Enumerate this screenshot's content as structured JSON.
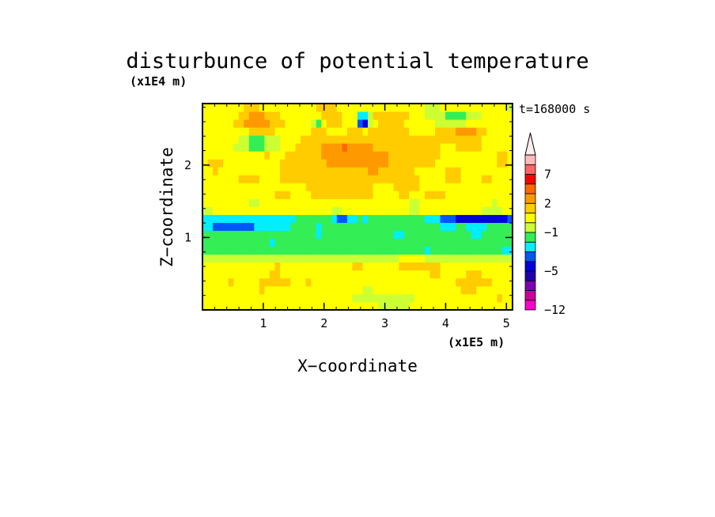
{
  "chart_data": {
    "type": "heatmap",
    "title": "disturbunce of potential temperature",
    "time_label": "t=168000 s",
    "xlabel": "X−coordinate",
    "ylabel": "Z−coordinate",
    "x_unit": "(x1E5 m)",
    "y_unit": "(x1E4 m)",
    "xlim": [
      0,
      5.1
    ],
    "ylim": [
      0,
      2.85
    ],
    "x_ticks": [
      1,
      2,
      3,
      4,
      5
    ],
    "x_tick_labels": [
      "1",
      "2",
      "3",
      "4",
      "5"
    ],
    "y_ticks": [
      1,
      2
    ],
    "y_tick_labels": [
      "1",
      "2"
    ],
    "colorbar": {
      "levels": [
        -12,
        -10,
        -8,
        -6,
        -5,
        -4,
        -3,
        -2,
        -1,
        0,
        1,
        2,
        3,
        5,
        7,
        9,
        11
      ],
      "tick_values": [
        -12,
        -5,
        -1,
        2,
        7
      ],
      "tick_labels": [
        "−12",
        "−5",
        "−1",
        "2",
        "7"
      ],
      "colors": [
        "#ff00cc",
        "#cc0099",
        "#7f00b2",
        "#2200aa",
        "#0000dd",
        "#0055ff",
        "#00eeff",
        "#33ee55",
        "#ccff33",
        "#ffff00",
        "#ffcc00",
        "#ff9900",
        "#ff6600",
        "#ff0000",
        "#ff6666",
        "#ffbbbb"
      ],
      "top_color": "#ffeeee",
      "extend": "max"
    },
    "field": {
      "nx": 60,
      "nz": 26,
      "background": -0.5,
      "bands": [
        {
          "z0": 0.0,
          "z1": 0.1,
          "value": 0.5
        },
        {
          "z0": 0.1,
          "z1": 0.62,
          "value": 0.6
        },
        {
          "z0": 0.62,
          "z1": 0.78,
          "value": -0.5
        },
        {
          "z0": 0.78,
          "z1": 1.35,
          "value": -1.6
        },
        {
          "z0": 1.35,
          "z1": 1.55,
          "value": 0.3
        },
        {
          "z0": 1.55,
          "z1": 1.9,
          "value": 1.0
        },
        {
          "z0": 1.9,
          "z1": 2.35,
          "value": 0.7
        },
        {
          "z0": 2.35,
          "z1": 2.85,
          "value": 0.4
        }
      ],
      "features": [
        {
          "x": 2.3,
          "z": 2.15,
          "rx": 0.25,
          "rz": 0.15,
          "value": 9
        },
        {
          "x": 2.7,
          "z": 2.1,
          "rx": 0.5,
          "rz": 0.22,
          "value": 3
        },
        {
          "x": 2.05,
          "z": 2.05,
          "rx": 0.7,
          "rz": 0.35,
          "value": 2
        },
        {
          "x": 3.3,
          "z": 2.25,
          "rx": 0.6,
          "rz": 0.25,
          "value": 2
        },
        {
          "x": 0.9,
          "z": 2.6,
          "rx": 0.3,
          "rz": 0.15,
          "value": 3
        },
        {
          "x": 2.0,
          "z": 2.65,
          "rx": 0.3,
          "rz": 0.15,
          "value": 2
        },
        {
          "x": 4.35,
          "z": 2.5,
          "rx": 0.3,
          "rz": 0.18,
          "value": 3
        },
        {
          "x": 3.05,
          "z": 2.65,
          "rx": 0.25,
          "rz": 0.12,
          "value": 2
        },
        {
          "x": 2.65,
          "z": 2.62,
          "rx": 0.1,
          "rz": 0.08,
          "value": -7
        },
        {
          "x": 1.9,
          "z": 2.62,
          "rx": 0.08,
          "rz": 0.06,
          "value": -4
        },
        {
          "x": 0.9,
          "z": 2.3,
          "rx": 0.35,
          "rz": 0.1,
          "value": -2
        },
        {
          "x": 4.2,
          "z": 2.65,
          "rx": 0.45,
          "rz": 0.12,
          "value": -1.5
        },
        {
          "x": 0.6,
          "z": 1.65,
          "rx": 0.7,
          "rz": 0.12,
          "value": 0.2
        },
        {
          "x": 4.7,
          "z": 1.65,
          "rx": 0.5,
          "rz": 0.12,
          "value": 0.2
        },
        {
          "x": 0.5,
          "z": 1.2,
          "rx": 0.8,
          "rz": 0.06,
          "value": -5
        },
        {
          "x": 4.6,
          "z": 1.25,
          "rx": 0.7,
          "rz": 0.07,
          "value": -5
        },
        {
          "x": 2.3,
          "z": 1.25,
          "rx": 0.15,
          "rz": 0.07,
          "value": -4
        },
        {
          "x": 3.5,
          "z": 0.6,
          "rx": 0.25,
          "rz": 0.1,
          "value": 2
        },
        {
          "x": 4.5,
          "z": 0.4,
          "rx": 0.3,
          "rz": 0.1,
          "value": 2
        },
        {
          "x": 1.2,
          "z": 0.4,
          "rx": 0.25,
          "rz": 0.08,
          "value": 2
        },
        {
          "x": 3.0,
          "z": 0.15,
          "rx": 0.6,
          "rz": 0.12,
          "value": -0.7
        }
      ]
    }
  }
}
